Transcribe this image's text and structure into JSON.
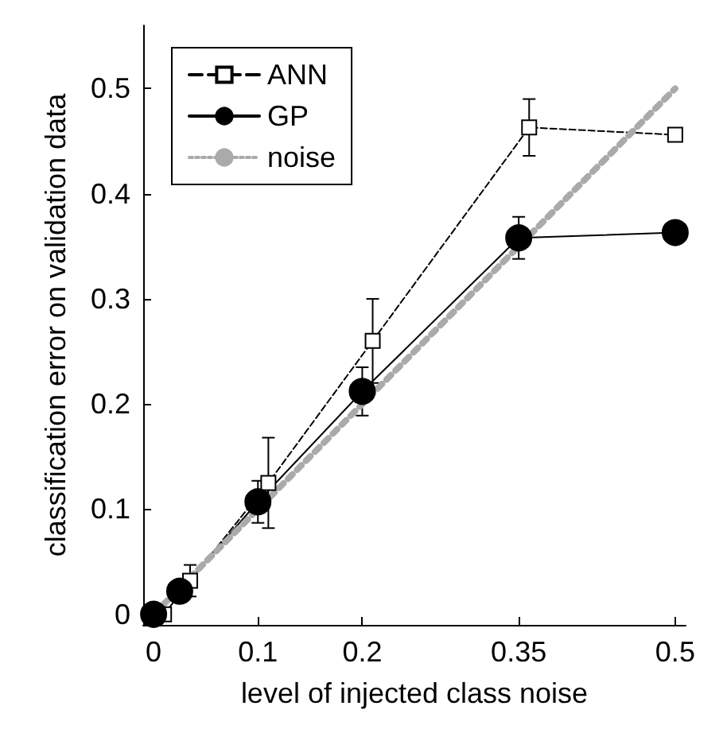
{
  "chart_data": {
    "type": "line",
    "xlabel": "level of injected class noise",
    "ylabel": "classification error on validation data",
    "xlim": [
      -0.01,
      0.51
    ],
    "ylim": [
      -0.01,
      0.56
    ],
    "xticks": [
      0,
      0.1,
      0.2,
      0.35,
      0.5
    ],
    "yticks": [
      0,
      0.1,
      0.2,
      0.3,
      0.4,
      0.5
    ],
    "grid": false,
    "legend": "top left",
    "series": [
      {
        "name": "ANN",
        "color": "#000000",
        "marker": "square",
        "line_style": "dashed",
        "x": [
          0.01,
          0.035,
          0.11,
          0.21,
          0.36,
          0.5
        ],
        "values": [
          0,
          0.032,
          0.125,
          0.26,
          0.463,
          0.456
        ],
        "errors": [
          null,
          0.015,
          0.043,
          0.04,
          0.027,
          null
        ]
      },
      {
        "name": "GP",
        "color": "#000000",
        "marker": "circle",
        "line_style": "solid",
        "x": [
          0,
          0.025,
          0.1,
          0.2,
          0.35,
          0.5
        ],
        "values": [
          0,
          0.022,
          0.107,
          0.212,
          0.358,
          0.363
        ],
        "errors": [
          null,
          null,
          0.02,
          0.023,
          0.02,
          null
        ]
      },
      {
        "name": "noise",
        "color": "#aaaaaa",
        "marker": "none",
        "line_style": "dotted",
        "x": [
          0,
          0.5
        ],
        "values": [
          0,
          0.5
        ]
      }
    ]
  }
}
